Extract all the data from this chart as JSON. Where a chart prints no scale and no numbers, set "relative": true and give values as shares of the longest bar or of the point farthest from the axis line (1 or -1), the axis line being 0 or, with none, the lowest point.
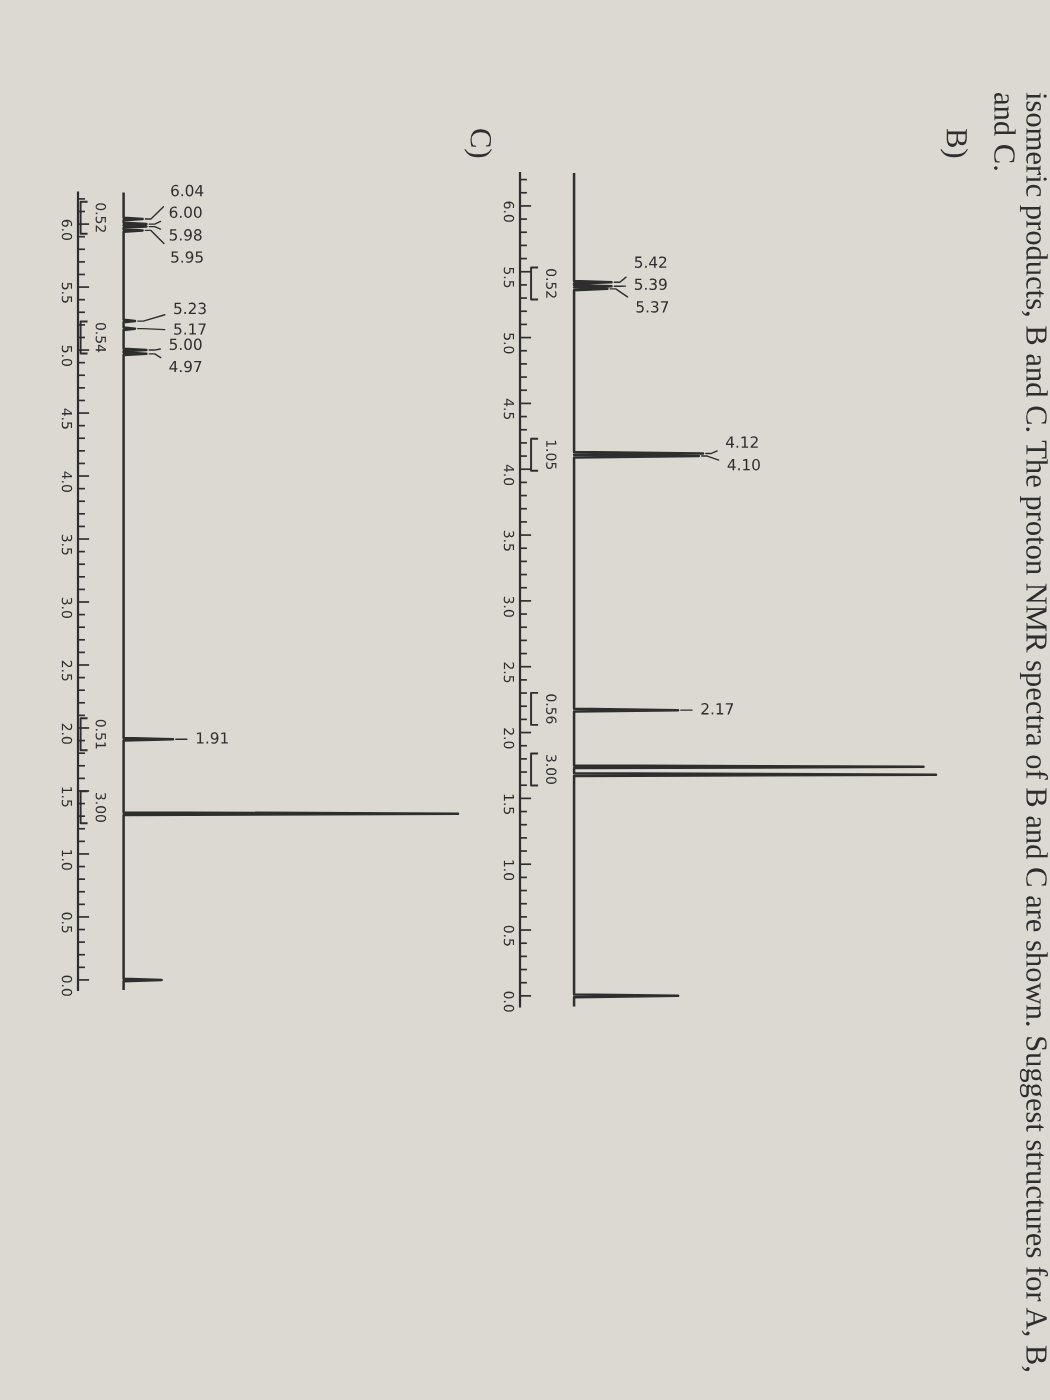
{
  "chart_data": [
    {
      "type": "line",
      "orientation": "horizontal",
      "title": "B)",
      "relative": true,
      "tick_labels": "y",
      "color": "#2e2e2e",
      "annotations": [
        "isomeric products, B and C. The proton NMR spectra of B and C are shown. Suggest structures for A, B, and C.",
        {
          "text": "5.42",
          "x": 0.22,
          "y": 5.42
        },
        {
          "text": "5.39",
          "x": 0.22,
          "y": 5.39
        },
        {
          "text": "5.37",
          "x": 0.21,
          "y": 5.37
        },
        {
          "text": "4.12",
          "x": 0.44,
          "y": 4.12
        },
        {
          "text": "4.10",
          "x": 0.43,
          "y": 4.1
        },
        {
          "text": "2.17",
          "x": 0.38,
          "y": 2.17
        },
        {
          "text": "0.52",
          "x": 0.13,
          "y": 5.41
        },
        {
          "text": "1.05",
          "x": 0.13,
          "y": 4.11
        },
        {
          "text": "0.56",
          "x": 0.13,
          "y": 2.18
        },
        {
          "text": "3.00",
          "x": 0.13,
          "y": 1.72
        }
      ],
      "x": [
        6.25,
        5.43,
        5.42,
        5.41,
        5.4,
        5.39,
        5.38,
        5.37,
        5.36,
        4.13,
        4.12,
        4.11,
        4.1,
        4.09,
        2.18,
        2.17,
        2.16,
        1.75,
        1.74,
        1.73,
        1.69,
        1.68,
        1.67,
        0.01,
        0.0,
        -0.01,
        -0.08
      ],
      "values": [
        0.13,
        0.13,
        0.22,
        0.13,
        0.13,
        0.22,
        0.13,
        0.21,
        0.13,
        0.13,
        0.44,
        0.13,
        0.43,
        0.13,
        0.13,
        0.38,
        0.13,
        0.13,
        0.97,
        0.13,
        0.13,
        1.0,
        0.13,
        0.13,
        0.38,
        0.13,
        0.13
      ],
      "ylim": [
        -0.08,
        6.25
      ],
      "yticks": [
        {
          "value": 6,
          "label": "6.0"
        },
        5.5,
        {
          "value": 5,
          "label": "5.0"
        },
        4.5,
        {
          "value": 4,
          "label": "4.0"
        },
        3.5,
        {
          "value": 3,
          "label": "3.0"
        },
        2.5,
        {
          "value": 2,
          "label": "2.0"
        },
        1.5,
        {
          "value": 1,
          "label": "1.0"
        },
        0.5,
        {
          "value": 0,
          "label": "0.0"
        },
        {
          "value": 6.2,
          "label": null
        },
        {
          "value": 6.1,
          "label": null
        },
        {
          "value": 5.9,
          "label": null
        },
        {
          "value": 5.8,
          "label": null
        },
        {
          "value": 5.7,
          "label": null
        },
        {
          "value": 5.6,
          "label": null
        },
        {
          "value": 5.4,
          "label": null
        },
        {
          "value": 5.3,
          "label": null
        },
        {
          "value": 5.2,
          "label": null
        },
        {
          "value": 5.1,
          "label": null
        },
        {
          "value": 4.9,
          "label": null
        },
        {
          "value": 4.8,
          "label": null
        },
        {
          "value": 4.7,
          "label": null
        },
        {
          "value": 4.6,
          "label": null
        },
        {
          "value": 4.4,
          "label": null
        },
        {
          "value": 4.3,
          "label": null
        },
        {
          "value": 4.2,
          "label": null
        },
        {
          "value": 4.1,
          "label": null
        },
        {
          "value": 3.9,
          "label": null
        },
        {
          "value": 3.8,
          "label": null
        },
        {
          "value": 3.7,
          "label": null
        },
        {
          "value": 3.6,
          "label": null
        },
        {
          "value": 3.4,
          "label": null
        },
        {
          "value": 3.3,
          "label": null
        },
        {
          "value": 3.2,
          "label": null
        },
        {
          "value": 3.1,
          "label": null
        },
        {
          "value": 2.9,
          "label": null
        },
        {
          "value": 2.8,
          "label": null
        },
        {
          "value": 2.7,
          "label": null
        },
        {
          "value": 2.6,
          "label": null
        },
        {
          "value": 2.4,
          "label": null
        },
        {
          "value": 2.3,
          "label": null
        },
        {
          "value": 2.2,
          "label": null
        },
        {
          "value": 2.1,
          "label": null
        },
        {
          "value": 1.9,
          "label": null
        },
        {
          "value": 1.8,
          "label": null
        },
        {
          "value": 1.7,
          "label": null
        },
        {
          "value": 1.6,
          "label": null
        },
        {
          "value": 1.4,
          "label": null
        },
        {
          "value": 1.3,
          "label": null
        },
        {
          "value": 1.2,
          "label": null
        },
        {
          "value": 1.1,
          "label": null
        },
        {
          "value": 0.9,
          "label": null
        },
        {
          "value": 0.8,
          "label": null
        },
        {
          "value": 0.7,
          "label": null
        },
        {
          "value": 0.6,
          "label": null
        },
        {
          "value": 0.4,
          "label": null
        },
        {
          "value": 0.3,
          "label": null
        },
        {
          "value": 0.2,
          "label": null
        },
        {
          "value": 0.1,
          "label": null
        }
      ]
    },
    {
      "type": "line",
      "orientation": "horizontal",
      "title": "C)",
      "relative": true,
      "tick_labels": "y",
      "color": "#2e2e2e",
      "annotations": [
        {
          "text": "6.04",
          "x": 0.17,
          "y": 6.04
        },
        {
          "text": "6.00",
          "x": 0.18,
          "y": 6.0
        },
        {
          "text": "5.98",
          "x": 0.18,
          "y": 5.98
        },
        {
          "text": "5.95",
          "x": 0.17,
          "y": 5.95
        },
        {
          "text": "5.23",
          "x": 0.15,
          "y": 5.23
        },
        {
          "text": "5.17",
          "x": 0.15,
          "y": 5.17
        },
        {
          "text": "5.00",
          "x": 0.18,
          "y": 5.0
        },
        {
          "text": "4.97",
          "x": 0.18,
          "y": 4.97
        },
        {
          "text": "1.91",
          "x": 0.25,
          "y": 1.91
        },
        {
          "text": "0.52",
          "x": 0.12,
          "y": 6.05
        },
        {
          "text": "0.54",
          "x": 0.12,
          "y": 5.1
        },
        {
          "text": "0.51",
          "x": 0.12,
          "y": 1.95
        },
        {
          "text": "3.00",
          "x": 0.12,
          "y": 1.37
        }
      ],
      "x": [
        6.25,
        6.05,
        6.04,
        6.03,
        6.01,
        6.0,
        5.99,
        5.98,
        5.97,
        5.96,
        5.95,
        5.94,
        5.24,
        5.23,
        5.22,
        5.18,
        5.17,
        5.16,
        5.01,
        5.0,
        4.99,
        4.98,
        4.97,
        4.96,
        1.92,
        1.91,
        1.9,
        1.33,
        1.32,
        1.31,
        0.01,
        0.0,
        -0.01,
        -0.08
      ],
      "values": [
        0.12,
        0.12,
        0.17,
        0.12,
        0.12,
        0.18,
        0.12,
        0.18,
        0.12,
        0.12,
        0.17,
        0.12,
        0.12,
        0.15,
        0.12,
        0.12,
        0.15,
        0.12,
        0.12,
        0.18,
        0.12,
        0.12,
        0.18,
        0.12,
        0.12,
        0.25,
        0.12,
        0.12,
        1.0,
        0.12,
        0.12,
        0.22,
        0.12,
        0.12
      ],
      "ylim": [
        -0.08,
        6.25
      ],
      "yticks": [
        {
          "value": 6,
          "label": "6.0"
        },
        5.5,
        {
          "value": 5,
          "label": "5.0"
        },
        4.5,
        {
          "value": 4,
          "label": "4.0"
        },
        3.5,
        {
          "value": 3,
          "label": "3.0"
        },
        2.5,
        {
          "value": 2,
          "label": "2.0"
        },
        1.5,
        {
          "value": 1,
          "label": "1.0"
        },
        0.5,
        {
          "value": 0,
          "label": "0.0"
        },
        {
          "value": 6.2,
          "label": null
        },
        {
          "value": 6.1,
          "label": null
        },
        {
          "value": 5.9,
          "label": null
        },
        {
          "value": 5.8,
          "label": null
        },
        {
          "value": 5.7,
          "label": null
        },
        {
          "value": 5.6,
          "label": null
        },
        {
          "value": 5.4,
          "label": null
        },
        {
          "value": 5.3,
          "label": null
        },
        {
          "value": 5.2,
          "label": null
        },
        {
          "value": 5.1,
          "label": null
        },
        {
          "value": 4.9,
          "label": null
        },
        {
          "value": 4.8,
          "label": null
        },
        {
          "value": 4.7,
          "label": null
        },
        {
          "value": 4.6,
          "label": null
        },
        {
          "value": 4.4,
          "label": null
        },
        {
          "value": 4.3,
          "label": null
        },
        {
          "value": 4.2,
          "label": null
        },
        {
          "value": 4.1,
          "label": null
        },
        {
          "value": 3.9,
          "label": null
        },
        {
          "value": 3.8,
          "label": null
        },
        {
          "value": 3.7,
          "label": null
        },
        {
          "value": 3.6,
          "label": null
        },
        {
          "value": 3.4,
          "label": null
        },
        {
          "value": 3.3,
          "label": null
        },
        {
          "value": 3.2,
          "label": null
        },
        {
          "value": 3.1,
          "label": null
        },
        {
          "value": 2.9,
          "label": null
        },
        {
          "value": 2.8,
          "label": null
        },
        {
          "value": 2.7,
          "label": null
        },
        {
          "value": 2.6,
          "label": null
        },
        {
          "value": 2.4,
          "label": null
        },
        {
          "value": 2.3,
          "label": null
        },
        {
          "value": 2.2,
          "label": null
        },
        {
          "value": 2.1,
          "label": null
        },
        {
          "value": 1.9,
          "label": null
        },
        {
          "value": 1.8,
          "label": null
        },
        {
          "value": 1.7,
          "label": null
        },
        {
          "value": 1.6,
          "label": null
        },
        {
          "value": 1.4,
          "label": null
        },
        {
          "value": 1.3,
          "label": null
        },
        {
          "value": 1.2,
          "label": null
        },
        {
          "value": 1.1,
          "label": null
        },
        {
          "value": 0.9,
          "label": null
        },
        {
          "value": 0.8,
          "label": null
        },
        {
          "value": 0.7,
          "label": null
        },
        {
          "value": 0.6,
          "label": null
        },
        {
          "value": 0.4,
          "label": null
        },
        {
          "value": 0.3,
          "label": null
        },
        {
          "value": 0.2,
          "label": null
        },
        {
          "value": 0.1,
          "label": null
        }
      ]
    }
  ]
}
